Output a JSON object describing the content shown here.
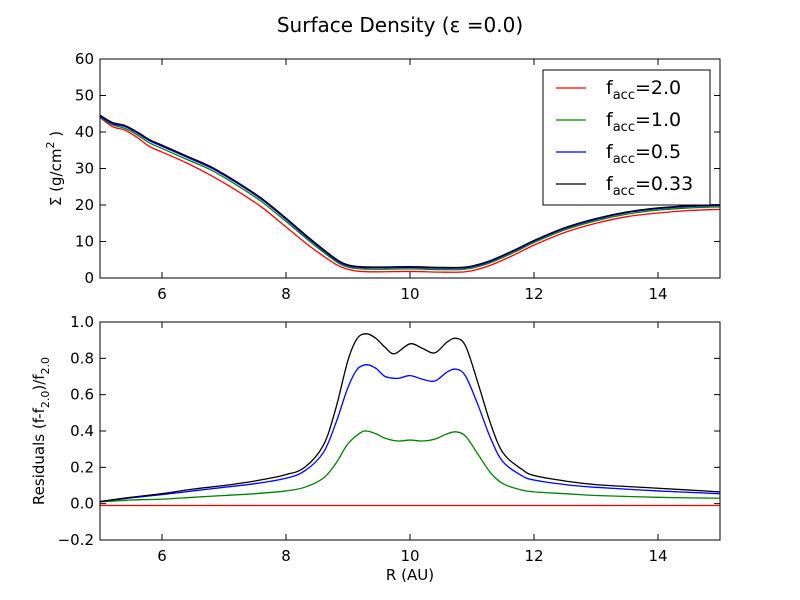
{
  "figure": {
    "title": "Surface Density (ε =0.0)"
  },
  "chart_data": [
    {
      "type": "line",
      "panel": "top",
      "xlabel": "",
      "ylabel": "Σ (g/cm² )",
      "xlim": [
        5,
        15
      ],
      "ylim": [
        0,
        60
      ],
      "xticks": [
        6,
        8,
        10,
        12,
        14
      ],
      "yticks": [
        0,
        10,
        20,
        30,
        40,
        50,
        60
      ],
      "legend_position": "top-right",
      "series": [
        {
          "name": "f_acc=2.0",
          "legend_base": "f",
          "legend_sub": "acc",
          "legend_val": "=2.0",
          "color": "#ff0000",
          "x": [
            5.0,
            5.2,
            5.4,
            5.6,
            5.8,
            6.0,
            6.4,
            6.8,
            7.2,
            7.6,
            8.0,
            8.4,
            8.8,
            9.0,
            9.2,
            9.5,
            10.0,
            10.5,
            10.8,
            11.0,
            11.3,
            11.7,
            12.0,
            12.5,
            13.0,
            13.5,
            14.0,
            14.5,
            15.0
          ],
          "y": [
            44,
            41.5,
            40.5,
            38.5,
            36,
            34.5,
            31.5,
            28,
            24,
            19.5,
            14,
            8.5,
            3.8,
            2.4,
            1.8,
            1.7,
            1.8,
            1.6,
            1.6,
            2.0,
            3.5,
            6.5,
            9.0,
            12.5,
            15.0,
            16.8,
            17.8,
            18.5,
            18.8
          ]
        },
        {
          "name": "f_acc=1.0",
          "legend_base": "f",
          "legend_sub": "acc",
          "legend_val": "=1.0",
          "color": "#008000",
          "x": [
            5.0,
            5.2,
            5.4,
            5.6,
            5.8,
            6.0,
            6.4,
            6.8,
            7.2,
            7.6,
            8.0,
            8.4,
            8.8,
            9.0,
            9.2,
            9.5,
            10.0,
            10.5,
            10.8,
            11.0,
            11.3,
            11.7,
            12.0,
            12.5,
            13.0,
            13.5,
            14.0,
            14.5,
            15.0
          ],
          "y": [
            44,
            42,
            41,
            39.2,
            37,
            35.5,
            32.5,
            29.5,
            25.5,
            21,
            15.5,
            9.8,
            4.6,
            3.0,
            2.5,
            2.4,
            2.5,
            2.3,
            2.3,
            2.7,
            4.2,
            7.2,
            9.7,
            13.2,
            15.7,
            17.5,
            18.6,
            19.2,
            19.5
          ]
        },
        {
          "name": "f_acc=0.5",
          "legend_base": "f",
          "legend_sub": "acc",
          "legend_val": "=0.5",
          "color": "#0000ff",
          "x": [
            5.0,
            5.2,
            5.4,
            5.6,
            5.8,
            6.0,
            6.4,
            6.8,
            7.2,
            7.6,
            8.0,
            8.4,
            8.8,
            9.0,
            9.2,
            9.5,
            10.0,
            10.5,
            10.8,
            11.0,
            11.3,
            11.7,
            12.0,
            12.5,
            13.0,
            13.5,
            14.0,
            14.5,
            15.0
          ],
          "y": [
            44.3,
            42.3,
            41.5,
            39.7,
            37.6,
            36.1,
            33.1,
            30.1,
            26.1,
            21.6,
            16.1,
            10.3,
            5.0,
            3.4,
            2.9,
            2.8,
            2.9,
            2.7,
            2.7,
            3.1,
            4.6,
            7.6,
            10.1,
            13.6,
            16.1,
            17.9,
            19.0,
            19.6,
            19.9
          ]
        },
        {
          "name": "f_acc=0.33",
          "legend_base": "f",
          "legend_sub": "acc",
          "legend_val": "=0.33",
          "color": "#000000",
          "x": [
            5.0,
            5.2,
            5.4,
            5.6,
            5.8,
            6.0,
            6.4,
            6.8,
            7.2,
            7.6,
            8.0,
            8.4,
            8.8,
            9.0,
            9.2,
            9.5,
            10.0,
            10.5,
            10.8,
            11.0,
            11.3,
            11.7,
            12.0,
            12.5,
            13.0,
            13.5,
            14.0,
            14.5,
            15.0
          ],
          "y": [
            44.6,
            42.6,
            41.8,
            40.0,
            37.9,
            36.4,
            33.4,
            30.4,
            26.4,
            21.9,
            16.4,
            10.6,
            5.3,
            3.6,
            3.1,
            3.0,
            3.1,
            2.9,
            2.9,
            3.3,
            4.8,
            7.8,
            10.3,
            13.8,
            16.3,
            18.1,
            19.2,
            19.8,
            20.1
          ]
        }
      ]
    },
    {
      "type": "line",
      "panel": "bottom",
      "xlabel": "R (AU)",
      "ylabel": "Residuals (f-f₂.₀)/f₂.₀",
      "xlim": [
        5,
        15
      ],
      "ylim": [
        -0.2,
        1.0
      ],
      "xticks": [
        6,
        8,
        10,
        12,
        14
      ],
      "yticks": [
        -0.2,
        0.0,
        0.2,
        0.4,
        0.6,
        0.8,
        1.0
      ],
      "series": [
        {
          "name": "f_acc=2.0",
          "color": "#ff0000",
          "x": [
            5.0,
            15.0
          ],
          "y": [
            -0.01,
            -0.01
          ]
        },
        {
          "name": "f_acc=1.0",
          "color": "#008000",
          "x": [
            5.0,
            5.5,
            6.0,
            6.5,
            7.0,
            7.5,
            8.0,
            8.3,
            8.6,
            8.8,
            9.0,
            9.2,
            9.3,
            9.45,
            9.6,
            9.8,
            10.0,
            10.2,
            10.4,
            10.6,
            10.75,
            10.9,
            11.1,
            11.3,
            11.5,
            11.8,
            12.0,
            12.5,
            13.0,
            14.0,
            15.0
          ],
          "y": [
            0.01,
            0.02,
            0.025,
            0.035,
            0.045,
            0.055,
            0.07,
            0.09,
            0.14,
            0.22,
            0.33,
            0.39,
            0.4,
            0.385,
            0.36,
            0.345,
            0.35,
            0.345,
            0.355,
            0.385,
            0.395,
            0.37,
            0.27,
            0.17,
            0.11,
            0.075,
            0.065,
            0.055,
            0.045,
            0.035,
            0.03
          ]
        },
        {
          "name": "f_acc=0.5",
          "color": "#0000ff",
          "x": [
            5.0,
            5.5,
            6.0,
            6.5,
            7.0,
            7.5,
            8.0,
            8.3,
            8.6,
            8.8,
            9.0,
            9.15,
            9.3,
            9.45,
            9.6,
            9.8,
            10.0,
            10.2,
            10.4,
            10.6,
            10.75,
            10.9,
            11.1,
            11.3,
            11.5,
            11.8,
            12.0,
            12.5,
            13.0,
            14.0,
            15.0
          ],
          "y": [
            0.012,
            0.032,
            0.05,
            0.07,
            0.09,
            0.11,
            0.14,
            0.18,
            0.28,
            0.44,
            0.64,
            0.74,
            0.765,
            0.745,
            0.7,
            0.69,
            0.705,
            0.685,
            0.675,
            0.725,
            0.74,
            0.7,
            0.54,
            0.36,
            0.23,
            0.155,
            0.13,
            0.105,
            0.09,
            0.07,
            0.055
          ]
        },
        {
          "name": "f_acc=0.33",
          "color": "#000000",
          "x": [
            5.0,
            5.5,
            6.0,
            6.5,
            7.0,
            7.5,
            8.0,
            8.3,
            8.6,
            8.8,
            9.0,
            9.15,
            9.3,
            9.45,
            9.6,
            9.75,
            10.0,
            10.2,
            10.4,
            10.6,
            10.75,
            10.9,
            11.1,
            11.3,
            11.5,
            11.8,
            12.0,
            12.5,
            13.0,
            14.0,
            15.0
          ],
          "y": [
            0.012,
            0.035,
            0.055,
            0.08,
            0.1,
            0.125,
            0.16,
            0.2,
            0.32,
            0.52,
            0.79,
            0.91,
            0.935,
            0.91,
            0.86,
            0.825,
            0.88,
            0.855,
            0.83,
            0.89,
            0.91,
            0.865,
            0.66,
            0.44,
            0.28,
            0.19,
            0.155,
            0.125,
            0.105,
            0.085,
            0.065
          ]
        }
      ]
    }
  ]
}
